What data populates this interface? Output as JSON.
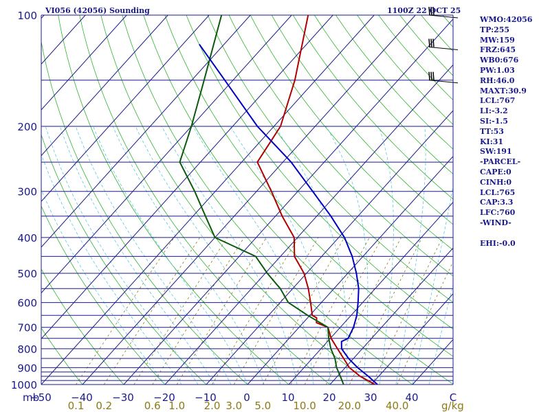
{
  "header": {
    "title": "VI056 (42056) Sounding",
    "time": "1100Z 22 OCT 25"
  },
  "indices": [
    {
      "key": "wmo",
      "text": "WMO:42056"
    },
    {
      "key": "tp",
      "text": "TP:255"
    },
    {
      "key": "mw",
      "text": "MW:159"
    },
    {
      "key": "frz",
      "text": "FRZ:645"
    },
    {
      "key": "wb0",
      "text": "WB0:676"
    },
    {
      "key": "pw",
      "text": "PW:1.03"
    },
    {
      "key": "rh",
      "text": "RH:46.0"
    },
    {
      "key": "maxt",
      "text": "MAXT:30.9"
    },
    {
      "key": "lcl",
      "text": "LCL:767"
    },
    {
      "key": "li",
      "text": "LI:-3.2"
    },
    {
      "key": "si",
      "text": "SI:-1.5"
    },
    {
      "key": "tt",
      "text": "TT:53"
    },
    {
      "key": "ki",
      "text": "KI:31"
    },
    {
      "key": "sw",
      "text": "SW:191"
    },
    {
      "key": "parcel-header",
      "text": "-PARCEL-"
    },
    {
      "key": "cape",
      "text": "CAPE:0"
    },
    {
      "key": "cinh",
      "text": "CINH:0"
    },
    {
      "key": "parcel-lcl",
      "text": "LCL:765"
    },
    {
      "key": "cap",
      "text": "CAP:3.3"
    },
    {
      "key": "lfc",
      "text": "LFC:760"
    },
    {
      "key": "wind-header",
      "text": "-WIND-"
    },
    {
      "key": "blank",
      "text": ""
    },
    {
      "key": "ehi",
      "text": "EHI:-0.0"
    }
  ],
  "colors": {
    "isobar": "#1a1a8c",
    "isotherm": "#1a1a8c",
    "dry_adiabat": "#2db52d",
    "moist_adiabat": "#5cc8e0",
    "mixing_ratio": "#8c7a14",
    "temperature": "#b00000",
    "dewpoint": "#0a5a0a",
    "parcel": "#0000c0",
    "axis_label": "#1a1a8c",
    "mixing_label": "#8c7a14"
  },
  "chart_data": {
    "type": "skew-t log-p sounding",
    "title": "VI056 (42056) Sounding",
    "valid_time": "1100Z 22 OCT 25",
    "pressure_unit": "mb",
    "pressure_range": [
      1000,
      100
    ],
    "pressure_ticks": [
      100,
      200,
      300,
      400,
      500,
      600,
      700,
      800,
      900,
      1000
    ],
    "isobars": [
      100,
      150,
      200,
      250,
      300,
      350,
      400,
      450,
      500,
      550,
      600,
      650,
      700,
      750,
      800,
      850,
      900,
      925,
      950,
      975,
      1000
    ],
    "temperature_unit": "C",
    "temperature_ticks": [
      -50,
      -40,
      -30,
      -20,
      -10,
      0,
      10,
      20,
      30,
      40
    ],
    "temperature_tick_labels": [
      "−50",
      "−40",
      "−30",
      "−20",
      "−10",
      "0",
      "10",
      "20",
      "30",
      "40",
      "C"
    ],
    "mixing_ratio_unit": "g/kg",
    "mixing_ratio_labels": [
      "0.1",
      "0.2",
      "0.6",
      "1.0",
      "2.0",
      "3.0",
      "5.0",
      "10.0",
      "20.0",
      "40.0"
    ],
    "series": [
      {
        "name": "Temperature",
        "pressure": [
          1000,
          975,
          950,
          925,
          900,
          850,
          800,
          750,
          700,
          680,
          660,
          650,
          600,
          550,
          500,
          450,
          400,
          350,
          300,
          250,
          200,
          150,
          100
        ],
        "values": [
          30.9,
          28.3,
          25.5,
          23.3,
          21.0,
          17.6,
          14.0,
          10.2,
          7.0,
          3.2,
          2.2,
          0.6,
          -2.6,
          -6.2,
          -10.6,
          -16.6,
          -20.8,
          -28.4,
          -36.4,
          -46.2,
          -48.4,
          -55.0,
          -66.0
        ]
      },
      {
        "name": "Dewpoint",
        "pressure": [
          1000,
          950,
          900,
          850,
          800,
          750,
          700,
          650,
          600,
          550,
          500,
          450,
          400,
          350,
          300,
          250,
          200,
          150,
          100
        ],
        "values": [
          23.3,
          20.7,
          17.9,
          15.5,
          12.4,
          9.6,
          7.0,
          -0.5,
          -8.0,
          -13.0,
          -19.5,
          -26.0,
          -40.0,
          -47.0,
          -55.0,
          -65.0,
          -70.0,
          -77.0,
          -87.0
        ]
      },
      {
        "name": "Parcel",
        "pressure": [
          1000,
          950,
          900,
          850,
          800,
          765,
          750,
          700,
          650,
          600,
          550,
          500,
          450,
          400,
          350,
          300,
          250,
          200,
          150,
          120
        ],
        "values": [
          31.5,
          27.5,
          23.0,
          18.8,
          15.0,
          13.4,
          14.3,
          13.2,
          11.4,
          8.9,
          6.0,
          2.1,
          -2.6,
          -8.6,
          -16.6,
          -26.4,
          -38.0,
          -54.0,
          -72.0,
          -86.0
        ]
      }
    ],
    "wind_barbs": [
      {
        "pressure": 100,
        "label": "upper"
      },
      {
        "pressure": 122,
        "label": "upper"
      },
      {
        "pressure": 150,
        "label": "upper"
      }
    ]
  }
}
